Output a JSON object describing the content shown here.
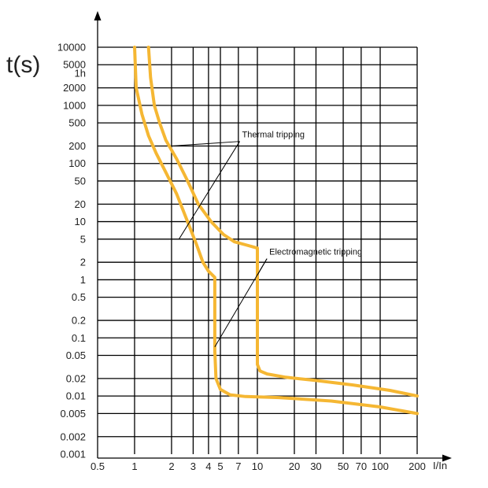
{
  "chart_data": {
    "type": "line",
    "title": "",
    "ylabel": "t(s)",
    "xlabel": "I/In",
    "xscale": "log",
    "yscale": "log",
    "xlim": [
      0.5,
      200
    ],
    "ylim": [
      0.001,
      10000
    ],
    "grid": true,
    "x_ticks": [
      {
        "value": 0.5,
        "label": "0.5"
      },
      {
        "value": 1,
        "label": "1"
      },
      {
        "value": 2,
        "label": "2"
      },
      {
        "value": 3,
        "label": "3"
      },
      {
        "value": 4,
        "label": "4"
      },
      {
        "value": 5,
        "label": "5"
      },
      {
        "value": 7,
        "label": "7"
      },
      {
        "value": 10,
        "label": "10"
      },
      {
        "value": 20,
        "label": "20"
      },
      {
        "value": 30,
        "label": "30"
      },
      {
        "value": 50,
        "label": "50"
      },
      {
        "value": 70,
        "label": "70"
      },
      {
        "value": 100,
        "label": "100"
      },
      {
        "value": 200,
        "label": "200"
      }
    ],
    "x_gridlines": [
      1,
      2,
      3,
      4,
      5,
      7,
      10,
      20,
      30,
      50,
      70,
      100,
      200
    ],
    "y_ticks": [
      {
        "value": 10000,
        "label": "10000"
      },
      {
        "value": 5000,
        "label": "5000"
      },
      {
        "value": 3600,
        "label": "1h"
      },
      {
        "value": 2000,
        "label": "2000"
      },
      {
        "value": 1000,
        "label": "1000"
      },
      {
        "value": 500,
        "label": "500"
      },
      {
        "value": 200,
        "label": "200"
      },
      {
        "value": 100,
        "label": "100"
      },
      {
        "value": 50,
        "label": "50"
      },
      {
        "value": 20,
        "label": "20"
      },
      {
        "value": 10,
        "label": "10"
      },
      {
        "value": 5,
        "label": "5"
      },
      {
        "value": 2,
        "label": "2"
      },
      {
        "value": 1,
        "label": "1"
      },
      {
        "value": 0.5,
        "label": "0.5"
      },
      {
        "value": 0.2,
        "label": "0.2"
      },
      {
        "value": 0.1,
        "label": "0.1"
      },
      {
        "value": 0.05,
        "label": "0.05"
      },
      {
        "value": 0.02,
        "label": "0.02"
      },
      {
        "value": 0.01,
        "label": "0.01"
      },
      {
        "value": 0.005,
        "label": "0.005"
      },
      {
        "value": 0.002,
        "label": "0.002"
      },
      {
        "value": 0.001,
        "label": "0.001"
      }
    ],
    "y_gridlines": [
      10000,
      5000,
      2000,
      1000,
      500,
      200,
      100,
      50,
      20,
      10,
      5,
      2,
      1,
      0.5,
      0.2,
      0.1,
      0.05,
      0.02,
      0.01,
      0.005,
      0.002
    ],
    "y_major_gridlines": [
      10,
      0.01
    ],
    "curve_color": "#f5b733",
    "series": [
      {
        "points": [
          [
            1,
            10000
          ],
          [
            1.03,
            2000
          ],
          [
            1.15,
            700
          ],
          [
            1.3,
            300
          ],
          [
            1.5,
            150
          ],
          [
            1.8,
            70
          ],
          [
            2.2,
            30
          ],
          [
            2.7,
            10
          ],
          [
            3.2,
            4
          ],
          [
            3.6,
            2
          ],
          [
            4,
            1.4
          ],
          [
            4.5,
            1.1
          ],
          [
            4.5,
            0.06
          ],
          [
            4.6,
            0.02
          ],
          [
            5,
            0.013
          ],
          [
            6,
            0.0105
          ],
          [
            8,
            0.0098
          ],
          [
            15,
            0.0094
          ],
          [
            40,
            0.0082
          ],
          [
            100,
            0.0065
          ],
          [
            200,
            0.005
          ]
        ]
      },
      {
        "points": [
          [
            1.3,
            10000
          ],
          [
            1.35,
            3000
          ],
          [
            1.45,
            1000
          ],
          [
            1.6,
            500
          ],
          [
            1.8,
            250
          ],
          [
            2.2,
            120
          ],
          [
            2.7,
            50
          ],
          [
            3.3,
            20
          ],
          [
            4.2,
            10
          ],
          [
            5.3,
            6
          ],
          [
            6.5,
            4.5
          ],
          [
            8,
            4
          ],
          [
            10,
            3.5
          ],
          [
            10,
            0.035
          ],
          [
            10.5,
            0.027
          ],
          [
            12,
            0.024
          ],
          [
            17,
            0.021
          ],
          [
            30,
            0.0185
          ],
          [
            60,
            0.0155
          ],
          [
            120,
            0.0125
          ],
          [
            200,
            0.01
          ]
        ]
      }
    ],
    "annotations": [
      {
        "text": "Thermal tripping",
        "x": 7.5,
        "y": 280,
        "leaders": [
          [
            2,
            200
          ],
          [
            2.3,
            5
          ]
        ]
      },
      {
        "text": "Electromagnetic tripping",
        "x": 12.5,
        "y": 2.7,
        "leaders": [
          [
            10,
            1.2
          ],
          [
            4.5,
            0.07
          ]
        ]
      }
    ]
  }
}
